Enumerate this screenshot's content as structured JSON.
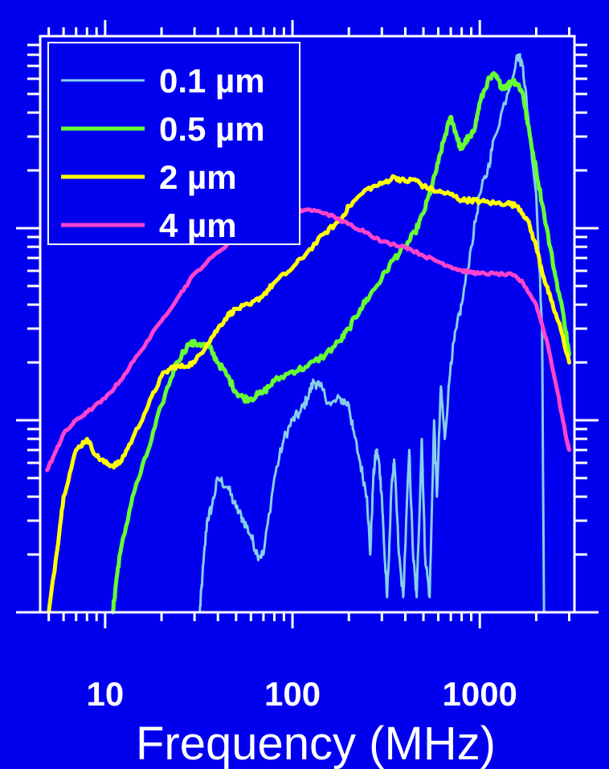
{
  "chart_data": {
    "type": "line",
    "xlabel": "Frequency (MHz)",
    "ylabel": "",
    "x_scale": "log",
    "y_scale": "log",
    "xlim": [
      4.5,
      3200
    ],
    "ylim": [
      0.01,
      10
    ],
    "x_tick_labels": [
      {
        "value": 10,
        "label": "10"
      },
      {
        "value": 100,
        "label": "100"
      },
      {
        "value": 1000,
        "label": "1000"
      }
    ],
    "grid": false,
    "legend_position": "top-left",
    "background_color": "#0000ee",
    "axis_color": "#ffffff",
    "series": [
      {
        "name": "0.1 µm",
        "color": "#87ceeb",
        "width": 3,
        "jitter": 0.06,
        "points": [
          [
            32,
            0.01
          ],
          [
            33,
            0.015
          ],
          [
            35,
            0.03
          ],
          [
            37,
            0.035
          ],
          [
            40,
            0.05
          ],
          [
            45,
            0.045
          ],
          [
            50,
            0.035
          ],
          [
            55,
            0.03
          ],
          [
            60,
            0.025
          ],
          [
            65,
            0.02
          ],
          [
            70,
            0.02
          ],
          [
            80,
            0.05
          ],
          [
            90,
            0.08
          ],
          [
            100,
            0.1
          ],
          [
            110,
            0.11
          ],
          [
            120,
            0.13
          ],
          [
            130,
            0.16
          ],
          [
            140,
            0.15
          ],
          [
            160,
            0.12
          ],
          [
            180,
            0.13
          ],
          [
            200,
            0.12
          ],
          [
            210,
            0.09
          ],
          [
            230,
            0.06
          ],
          [
            250,
            0.04
          ],
          [
            260,
            0.02
          ],
          [
            270,
            0.05
          ],
          [
            280,
            0.07
          ],
          [
            290,
            0.06
          ],
          [
            300,
            0.04
          ],
          [
            310,
            0.02
          ],
          [
            320,
            0.012
          ],
          [
            340,
            0.05
          ],
          [
            350,
            0.06
          ],
          [
            370,
            0.02
          ],
          [
            390,
            0.012
          ],
          [
            420,
            0.07
          ],
          [
            440,
            0.02
          ],
          [
            460,
            0.012
          ],
          [
            490,
            0.08
          ],
          [
            510,
            0.02
          ],
          [
            540,
            0.012
          ],
          [
            570,
            0.1
          ],
          [
            590,
            0.04
          ],
          [
            620,
            0.15
          ],
          [
            650,
            0.08
          ],
          [
            700,
            0.2
          ],
          [
            750,
            0.3
          ],
          [
            800,
            0.4
          ],
          [
            900,
            0.8
          ],
          [
            1000,
            1.5
          ],
          [
            1100,
            2
          ],
          [
            1200,
            3
          ],
          [
            1400,
            5
          ],
          [
            1600,
            8
          ],
          [
            1700,
            7
          ],
          [
            1800,
            4
          ],
          [
            2000,
            1.5
          ],
          [
            2150,
            0.3
          ],
          [
            2200,
            0.01
          ]
        ]
      },
      {
        "name": "0.5 µm",
        "color": "#66ff33",
        "width": 5,
        "jitter": 0.035,
        "points": [
          [
            11,
            0.01
          ],
          [
            11.5,
            0.015
          ],
          [
            12,
            0.02
          ],
          [
            14,
            0.04
          ],
          [
            17,
            0.07
          ],
          [
            20,
            0.12
          ],
          [
            24,
            0.2
          ],
          [
            28,
            0.25
          ],
          [
            32,
            0.25
          ],
          [
            36,
            0.24
          ],
          [
            40,
            0.2
          ],
          [
            45,
            0.17
          ],
          [
            50,
            0.14
          ],
          [
            55,
            0.13
          ],
          [
            60,
            0.13
          ],
          [
            70,
            0.14
          ],
          [
            80,
            0.16
          ],
          [
            100,
            0.18
          ],
          [
            120,
            0.19
          ],
          [
            150,
            0.22
          ],
          [
            180,
            0.26
          ],
          [
            200,
            0.3
          ],
          [
            230,
            0.38
          ],
          [
            260,
            0.45
          ],
          [
            300,
            0.55
          ],
          [
            350,
            0.7
          ],
          [
            400,
            0.8
          ],
          [
            450,
            0.95
          ],
          [
            500,
            1.2
          ],
          [
            550,
            1.6
          ],
          [
            600,
            2.2
          ],
          [
            650,
            3.0
          ],
          [
            700,
            3.8
          ],
          [
            740,
            3.2
          ],
          [
            780,
            2.7
          ],
          [
            800,
            2.6
          ],
          [
            850,
            2.9
          ],
          [
            900,
            3.0
          ],
          [
            950,
            3.5
          ],
          [
            1000,
            4.5
          ],
          [
            1100,
            5.8
          ],
          [
            1200,
            6.3
          ],
          [
            1300,
            5.5
          ],
          [
            1400,
            5.5
          ],
          [
            1500,
            5.9
          ],
          [
            1600,
            5.6
          ],
          [
            1700,
            5.0
          ],
          [
            1800,
            3.5
          ],
          [
            2000,
            2.0
          ],
          [
            2200,
            1.2
          ],
          [
            2500,
            0.6
          ],
          [
            2800,
            0.35
          ],
          [
            3000,
            0.22
          ]
        ]
      },
      {
        "name": "2 µm",
        "color": "#ffff00",
        "width": 5,
        "jitter": 0.025,
        "points": [
          [
            5,
            0.01
          ],
          [
            5.5,
            0.02
          ],
          [
            6,
            0.04
          ],
          [
            7,
            0.07
          ],
          [
            8,
            0.08
          ],
          [
            9,
            0.065
          ],
          [
            10,
            0.06
          ],
          [
            11,
            0.058
          ],
          [
            12,
            0.06
          ],
          [
            14,
            0.08
          ],
          [
            17,
            0.12
          ],
          [
            20,
            0.17
          ],
          [
            23,
            0.19
          ],
          [
            26,
            0.19
          ],
          [
            30,
            0.2
          ],
          [
            35,
            0.25
          ],
          [
            40,
            0.3
          ],
          [
            45,
            0.35
          ],
          [
            50,
            0.38
          ],
          [
            60,
            0.4
          ],
          [
            70,
            0.45
          ],
          [
            80,
            0.52
          ],
          [
            100,
            0.62
          ],
          [
            120,
            0.75
          ],
          [
            150,
            0.95
          ],
          [
            180,
            1.1
          ],
          [
            200,
            1.3
          ],
          [
            250,
            1.6
          ],
          [
            300,
            1.7
          ],
          [
            350,
            1.85
          ],
          [
            400,
            1.75
          ],
          [
            450,
            1.8
          ],
          [
            500,
            1.65
          ],
          [
            600,
            1.55
          ],
          [
            700,
            1.5
          ],
          [
            800,
            1.4
          ],
          [
            900,
            1.4
          ],
          [
            1000,
            1.38
          ],
          [
            1200,
            1.35
          ],
          [
            1400,
            1.35
          ],
          [
            1600,
            1.3
          ],
          [
            1800,
            1.1
          ],
          [
            2000,
            0.8
          ],
          [
            2200,
            0.55
          ],
          [
            2400,
            0.42
          ],
          [
            2700,
            0.3
          ],
          [
            3000,
            0.2
          ]
        ]
      },
      {
        "name": "4 µm",
        "color": "#ff44cc",
        "width": 5,
        "jitter": 0.015,
        "points": [
          [
            4.9,
            0.055
          ],
          [
            5.5,
            0.07
          ],
          [
            6,
            0.085
          ],
          [
            7,
            0.1
          ],
          [
            8,
            0.11
          ],
          [
            10,
            0.13
          ],
          [
            12,
            0.16
          ],
          [
            15,
            0.22
          ],
          [
            20,
            0.33
          ],
          [
            25,
            0.45
          ],
          [
            30,
            0.58
          ],
          [
            40,
            0.75
          ],
          [
            50,
            0.9
          ],
          [
            60,
            1.05
          ],
          [
            70,
            1.15
          ],
          [
            80,
            1.2
          ],
          [
            100,
            1.22
          ],
          [
            120,
            1.25
          ],
          [
            150,
            1.2
          ],
          [
            180,
            1.1
          ],
          [
            200,
            1.05
          ],
          [
            250,
            0.95
          ],
          [
            300,
            0.85
          ],
          [
            400,
            0.8
          ],
          [
            500,
            0.72
          ],
          [
            600,
            0.67
          ],
          [
            700,
            0.63
          ],
          [
            800,
            0.6
          ],
          [
            900,
            0.59
          ],
          [
            1000,
            0.58
          ],
          [
            1200,
            0.58
          ],
          [
            1500,
            0.57
          ],
          [
            1700,
            0.52
          ],
          [
            2000,
            0.4
          ],
          [
            2300,
            0.25
          ],
          [
            2600,
            0.14
          ],
          [
            2900,
            0.08
          ],
          [
            3000,
            0.07
          ]
        ]
      }
    ]
  }
}
